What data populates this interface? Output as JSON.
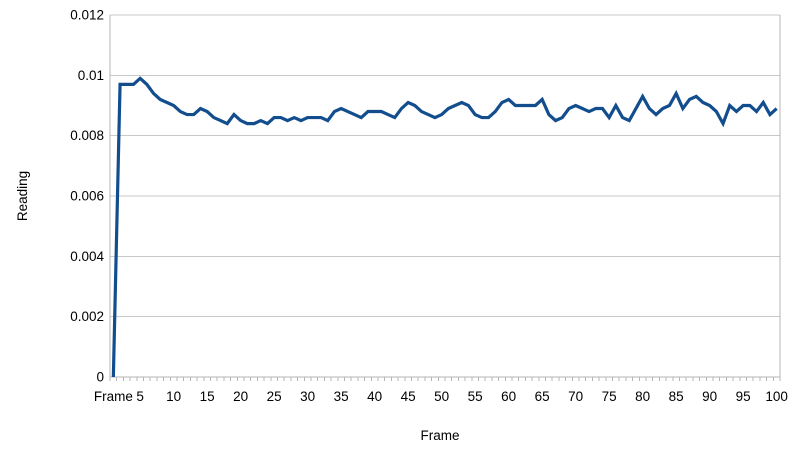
{
  "chart_data": {
    "type": "line",
    "title": "",
    "xlabel": "Frame",
    "ylabel": "Reading",
    "grid": true,
    "legend": "none",
    "ylim": [
      0,
      0.012
    ],
    "y_ticks": [
      0,
      0.002,
      0.004,
      0.006,
      0.008,
      0.01,
      0.012
    ],
    "y_tick_labels": [
      "0",
      "0.002",
      "0.004",
      "0.006",
      "0.008",
      "0.01",
      "0.012"
    ],
    "x_tick_positions": [
      1,
      5,
      10,
      15,
      20,
      25,
      30,
      35,
      40,
      45,
      50,
      55,
      60,
      65,
      70,
      75,
      80,
      85,
      90,
      95,
      100
    ],
    "x_tick_labels": [
      "Frame",
      "5",
      "10",
      "15",
      "20",
      "25",
      "30",
      "35",
      "40",
      "45",
      "50",
      "55",
      "60",
      "65",
      "70",
      "75",
      "80",
      "85",
      "90",
      "95",
      "100"
    ],
    "series": [
      {
        "name": "Reading",
        "color": "#124d8e",
        "values": [
          0,
          0.0097,
          0.0097,
          0.0097,
          0.0099,
          0.0097,
          0.0094,
          0.0092,
          0.0091,
          0.009,
          0.0088,
          0.0087,
          0.0087,
          0.0089,
          0.0088,
          0.0086,
          0.0085,
          0.0084,
          0.0087,
          0.0085,
          0.0084,
          0.0084,
          0.0085,
          0.0084,
          0.0086,
          0.0086,
          0.0085,
          0.0086,
          0.0085,
          0.0086,
          0.0086,
          0.0086,
          0.0085,
          0.0088,
          0.0089,
          0.0088,
          0.0087,
          0.0086,
          0.0088,
          0.0088,
          0.0088,
          0.0087,
          0.0086,
          0.0089,
          0.0091,
          0.009,
          0.0088,
          0.0087,
          0.0086,
          0.0087,
          0.0089,
          0.009,
          0.0091,
          0.009,
          0.0087,
          0.0086,
          0.0086,
          0.0088,
          0.0091,
          0.0092,
          0.009,
          0.009,
          0.009,
          0.009,
          0.0092,
          0.0087,
          0.0085,
          0.0086,
          0.0089,
          0.009,
          0.0089,
          0.0088,
          0.0089,
          0.0089,
          0.0086,
          0.009,
          0.0086,
          0.0085,
          0.0089,
          0.0093,
          0.0089,
          0.0087,
          0.0089,
          0.009,
          0.0094,
          0.0089,
          0.0092,
          0.0093,
          0.0091,
          0.009,
          0.0088,
          0.0084,
          0.009,
          0.0088,
          0.009,
          0.009,
          0.0088,
          0.0091,
          0.0087,
          0.0089
        ]
      }
    ]
  },
  "colors": {
    "line": "#124d8e",
    "gridline": "#c9c9c9",
    "axis": "#b5b5b5",
    "text": "#000000",
    "background": "#ffffff"
  }
}
